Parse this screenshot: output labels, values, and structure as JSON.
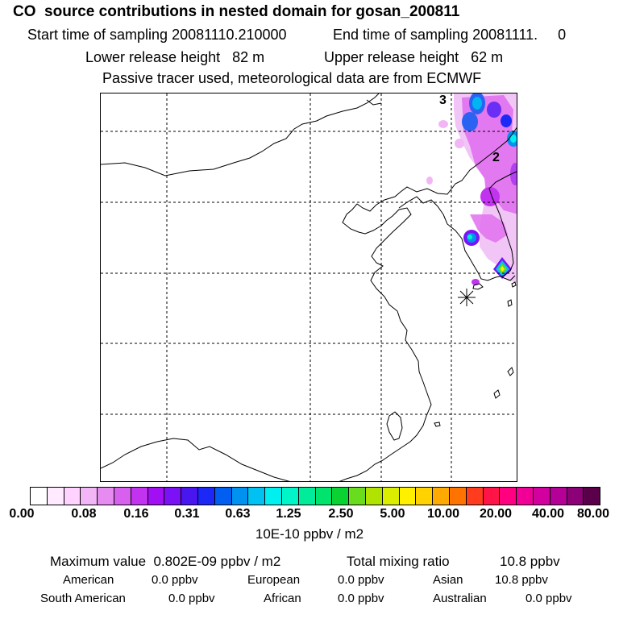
{
  "title": "CO  source contributions in nested domain for gosan_200811",
  "header": {
    "start_label": "Start time of sampling 20081110.210000",
    "end_label": "End time of sampling 20081111.     0",
    "lower_label": "Lower release height   82 m",
    "upper_label": "Upper release height   62 m",
    "tracer_note": "Passive tracer used, meteorological data are from ECMWF"
  },
  "map": {
    "contour_labels": [
      "3",
      "2"
    ],
    "receptor": "gosan receptor marker",
    "colors": {
      "coast": "#000000",
      "grid": "#000000"
    }
  },
  "colorbar": {
    "colors": [
      "#ffffff",
      "#ffeaff",
      "#ffd2ff",
      "#f2b6f6",
      "#e68cf0",
      "#d860ee",
      "#c233f0",
      "#a20ff2",
      "#7b12f5",
      "#4a16f0",
      "#1c28f5",
      "#005ff0",
      "#0092f0",
      "#00c2f2",
      "#00f0f0",
      "#00f5c8",
      "#00eb9a",
      "#00e46e",
      "#0ad232",
      "#6adc1e",
      "#b0e400",
      "#dcee00",
      "#fff000",
      "#ffd200",
      "#ffaa00",
      "#ff7300",
      "#ff3c1e",
      "#ff1448",
      "#ff0080",
      "#f00096",
      "#d2009e",
      "#b40096",
      "#8c0078",
      "#5a004b"
    ],
    "tick_labels": [
      "0.00",
      "0.08",
      "0.16",
      "0.31",
      "0.63",
      "1.25",
      "2.50",
      "5.00",
      "10.00",
      "20.00",
      "40.00",
      "80.00"
    ],
    "units": "10E-10 ppbv / m2"
  },
  "stats": {
    "max_label": "Maximum value  0.802E-09 ppbv / m2",
    "total_label": "Total mixing ratio",
    "total_value": "10.8 ppbv",
    "regions": [
      {
        "name": "American",
        "value": "0.0 ppbv"
      },
      {
        "name": "European",
        "value": "0.0 ppbv"
      },
      {
        "name": "Asian",
        "value": "10.8 ppbv"
      },
      {
        "name": "South American",
        "value": "0.0 ppbv"
      },
      {
        "name": "African",
        "value": "0.0 ppbv"
      },
      {
        "name": "Australian",
        "value": "0.0 ppbv"
      }
    ]
  }
}
